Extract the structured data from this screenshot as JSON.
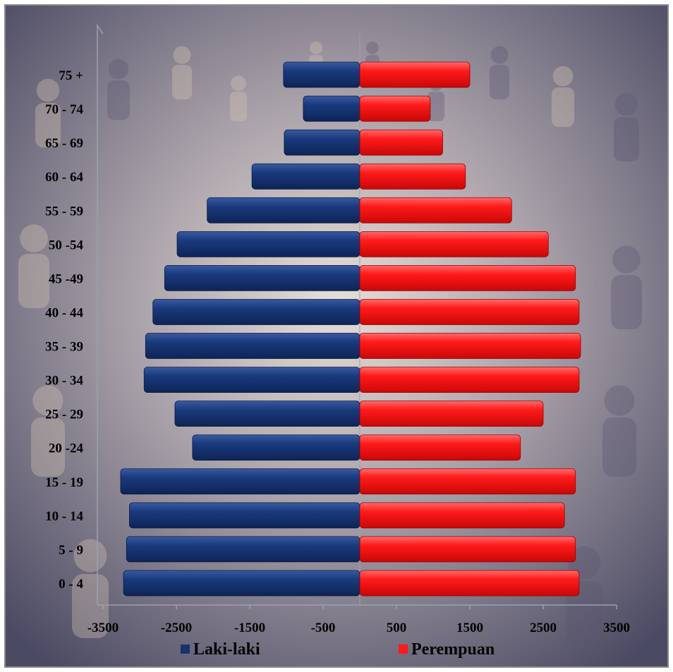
{
  "chart_data": {
    "type": "bar",
    "orientation": "horizontal",
    "title": "",
    "categories": [
      "0 - 4",
      "5 - 9",
      "10 - 14",
      "15 - 19",
      "20 -24",
      "25 - 29",
      "30 - 34",
      "35 - 39",
      "40 - 44",
      "45 -49",
      "50 -54",
      "55 - 59",
      "60 - 64",
      "65 - 69",
      "70 - 74",
      "75 +"
    ],
    "series": [
      {
        "name": "Laki-laki",
        "color": "#16336e",
        "values": [
          -3220,
          -3180,
          -3140,
          -3260,
          -2280,
          -2520,
          -2940,
          -2920,
          -2820,
          -2660,
          -2490,
          -2080,
          -1470,
          -1030,
          -770,
          -1040
        ]
      },
      {
        "name": "Perempuan",
        "color": "#ff1a1a",
        "values": [
          2990,
          2940,
          2790,
          2940,
          2190,
          2500,
          2990,
          3010,
          2990,
          2940,
          2570,
          2070,
          1440,
          1130,
          960,
          1500
        ]
      }
    ],
    "x_ticks": [
      -3500,
      -2500,
      -1500,
      -500,
      500,
      1500,
      2500,
      3500
    ],
    "xlim": [
      -3500,
      3500
    ],
    "grid": false,
    "legend_position": "bottom"
  },
  "legend": {
    "male_label": "Laki-laki",
    "female_label": "Perempuan"
  }
}
